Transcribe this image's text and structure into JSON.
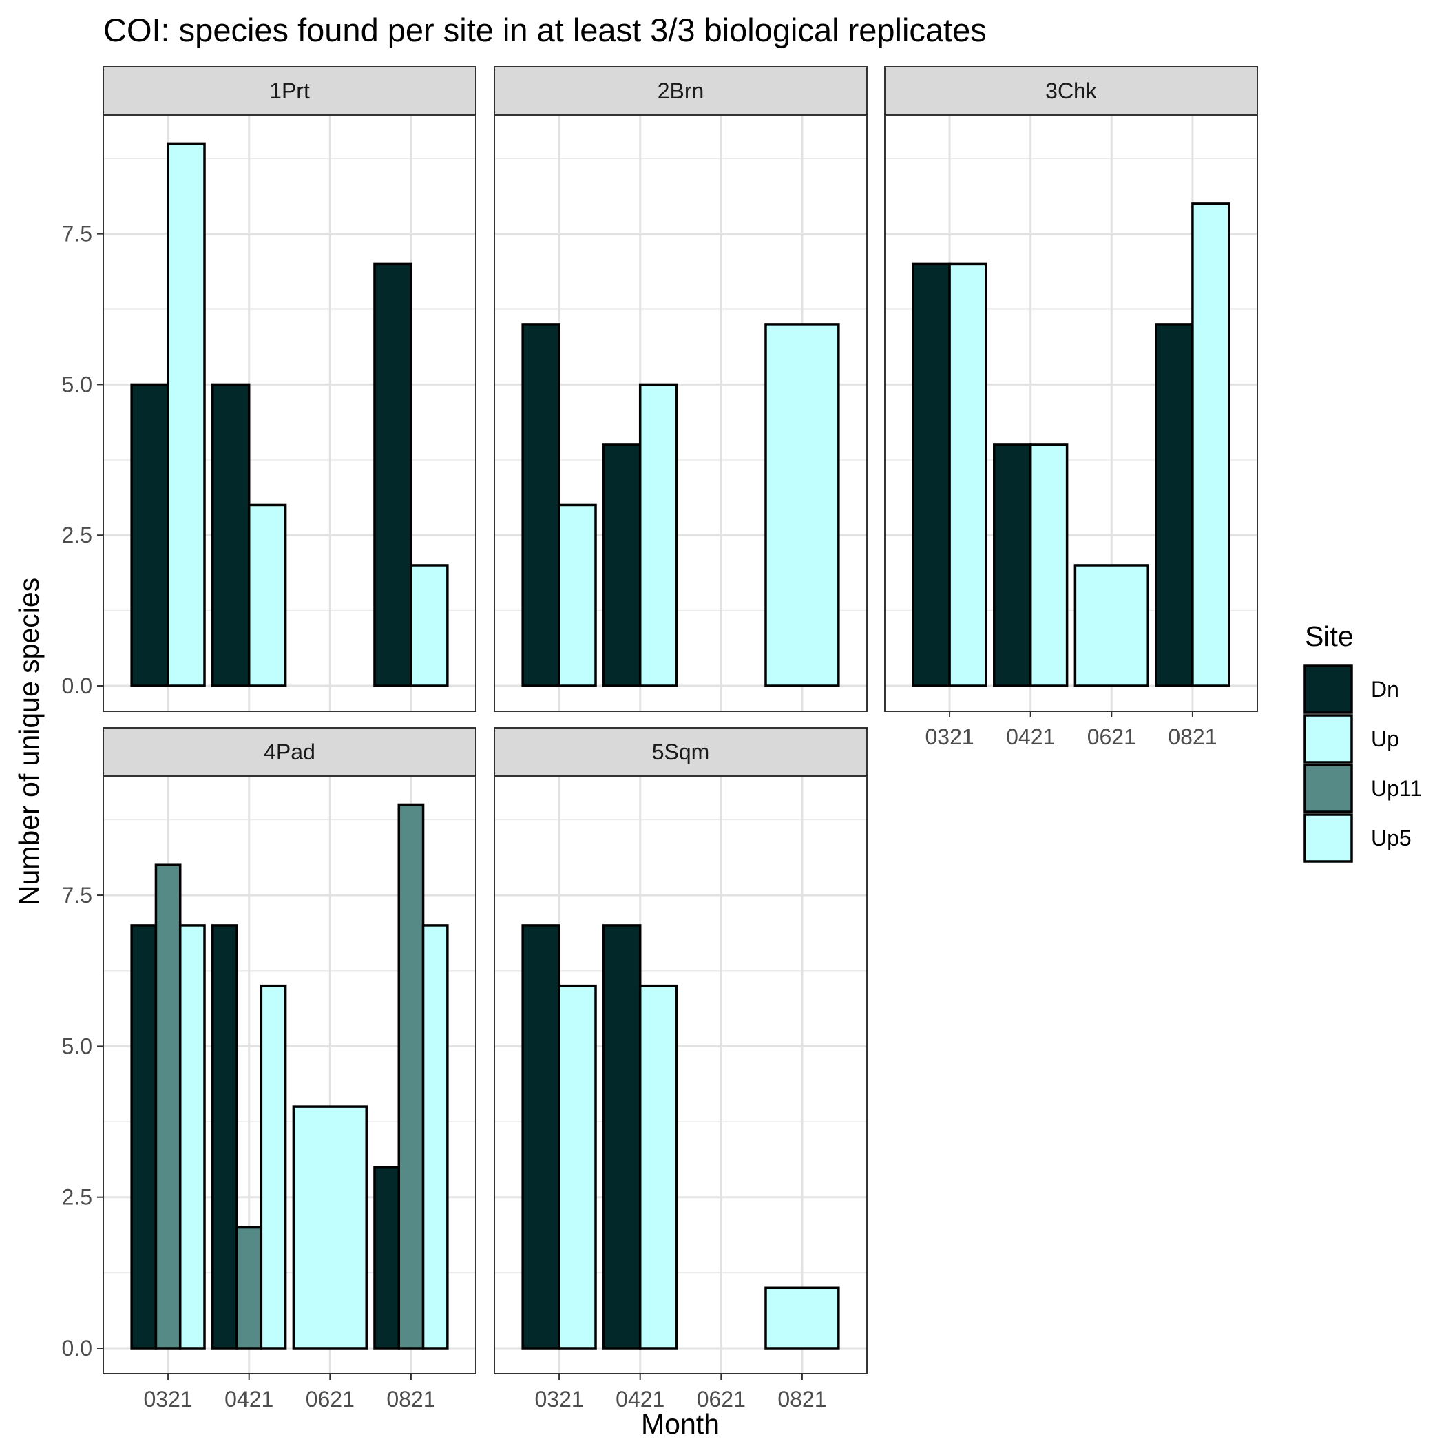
{
  "chart_data": {
    "type": "bar",
    "title": "COI: species found per site in at least 3/3 biological replicates",
    "xlabel": "Month",
    "ylabel": "Number of unique species",
    "ylim": [
      0,
      9.45
    ],
    "yticks": [
      "0.0",
      "2.5",
      "5.0",
      "7.5"
    ],
    "categories": [
      "0321",
      "0421",
      "0621",
      "0821"
    ],
    "grid": true,
    "legend": {
      "title": "Site",
      "position": "right",
      "entries": [
        {
          "name": "Dn",
          "color": "#03282A"
        },
        {
          "name": "Up",
          "color": "#C1FFFF"
        },
        {
          "name": "Up11",
          "color": "#558A86"
        },
        {
          "name": "Up5",
          "color": "#C1FFFF"
        }
      ]
    },
    "facets": [
      {
        "label": "1Prt",
        "bars": [
          {
            "month": "0321",
            "groups": [
              {
                "site": "Dn",
                "value": 5
              },
              {
                "site": "Up",
                "value": 9
              }
            ]
          },
          {
            "month": "0421",
            "groups": [
              {
                "site": "Dn",
                "value": 5
              },
              {
                "site": "Up",
                "value": 3
              }
            ]
          },
          {
            "month": "0621",
            "groups": []
          },
          {
            "month": "0821",
            "groups": [
              {
                "site": "Dn",
                "value": 7
              },
              {
                "site": "Up",
                "value": 2
              }
            ]
          }
        ]
      },
      {
        "label": "2Brn",
        "bars": [
          {
            "month": "0321",
            "groups": [
              {
                "site": "Dn",
                "value": 6
              },
              {
                "site": "Up",
                "value": 3
              }
            ]
          },
          {
            "month": "0421",
            "groups": [
              {
                "site": "Dn",
                "value": 4
              },
              {
                "site": "Up",
                "value": 5
              }
            ]
          },
          {
            "month": "0621",
            "groups": []
          },
          {
            "month": "0821",
            "groups": [
              {
                "site": "Up",
                "value": 6
              }
            ]
          }
        ]
      },
      {
        "label": "3Chk",
        "bars": [
          {
            "month": "0321",
            "groups": [
              {
                "site": "Dn",
                "value": 7
              },
              {
                "site": "Up",
                "value": 7
              }
            ]
          },
          {
            "month": "0421",
            "groups": [
              {
                "site": "Dn",
                "value": 4
              },
              {
                "site": "Up",
                "value": 4
              }
            ]
          },
          {
            "month": "0621",
            "groups": [
              {
                "site": "Up",
                "value": 2
              }
            ]
          },
          {
            "month": "0821",
            "groups": [
              {
                "site": "Dn",
                "value": 6
              },
              {
                "site": "Up",
                "value": 8
              }
            ]
          }
        ]
      },
      {
        "label": "4Pad",
        "bars": [
          {
            "month": "0321",
            "groups": [
              {
                "site": "Dn",
                "value": 7
              },
              {
                "site": "Up11",
                "value": 8
              },
              {
                "site": "Up5",
                "value": 7
              }
            ]
          },
          {
            "month": "0421",
            "groups": [
              {
                "site": "Dn",
                "value": 7
              },
              {
                "site": "Up11",
                "value": 2
              },
              {
                "site": "Up5",
                "value": 6
              }
            ]
          },
          {
            "month": "0621",
            "groups": [
              {
                "site": "Up5",
                "value": 4
              }
            ]
          },
          {
            "month": "0821",
            "groups": [
              {
                "site": "Dn",
                "value": 3
              },
              {
                "site": "Up11",
                "value": 9
              },
              {
                "site": "Up5",
                "value": 7
              }
            ]
          }
        ]
      },
      {
        "label": "5Sqm",
        "bars": [
          {
            "month": "0321",
            "groups": [
              {
                "site": "Dn",
                "value": 7
              },
              {
                "site": "Up",
                "value": 6
              }
            ]
          },
          {
            "month": "0421",
            "groups": [
              {
                "site": "Dn",
                "value": 7
              },
              {
                "site": "Up",
                "value": 6
              }
            ]
          },
          {
            "month": "0621",
            "groups": []
          },
          {
            "month": "0821",
            "groups": [
              {
                "site": "Up",
                "value": 1
              }
            ]
          }
        ]
      }
    ]
  }
}
